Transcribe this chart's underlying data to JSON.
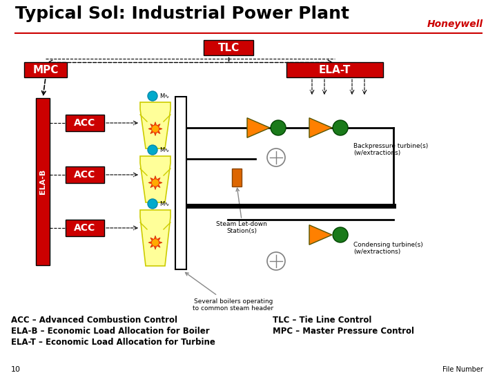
{
  "title": "Typical Sol: Industrial Power Plant",
  "title_fontsize": 18,
  "honeywell_text": "Honeywell",
  "honeywell_color": "#cc0000",
  "bg_color": "#ffffff",
  "red_color": "#cc0000",
  "orange_color": "#ff8000",
  "green_color": "#1a7a1a",
  "cyan_color": "#00aacc",
  "yellow_color": "#ffff99",
  "yellow_border": "#cccc00",
  "label_tlc": "TLC",
  "label_mpc": "MPC",
  "label_elat": "ELA-T",
  "label_elab": "ELA-B",
  "label_acc": "ACC",
  "bottom_texts": [
    "ACC – Advanced Combustion Control",
    "ELA-B – Economic Load Allocation for Boiler",
    "ELA-T – Economic Load Allocation for Turbine"
  ],
  "bottom_texts_right": [
    "TLC – Tie Line Control",
    "MPC – Master Pressure Control"
  ],
  "annotation_backpressure": "Backpressure turbine(s)\n(w/extractions)",
  "annotation_condensing": "Condensing turbine(s)\n(w/extractions)",
  "annotation_letdown": "Steam Let-down\nStation(s)",
  "annotation_boilers": "Several boilers operating\nto common steam header",
  "footnote": "10",
  "file_number": "File Number"
}
